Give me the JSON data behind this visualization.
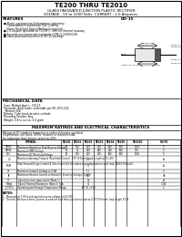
{
  "title": "TE200 THRU TE2010",
  "subtitle": "GLASS PASSIVATED JUNCTION PLASTIC RECTIFIER",
  "subtitle2": "VOLTAGE : 50 to 1000 Volts  CURRENT : 2.0 Amperes",
  "features_title": "FEATURES",
  "do15_label": "DO-15",
  "features": [
    "Plastic package has Underwriters Laboratory",
    "  Flammability Classification 94V-0 rating",
    "  Flame Retardant Epoxy Molding Compound",
    "2.0 ampere operation at TL=55°C  with no thermal runaway",
    "Exceeds environmental standards of MIL-S-19500/228",
    "Glass passivated junction in DO-15 package"
  ],
  "mech_title": "MECHANICAL DATA",
  "mech": [
    "Case: Molded plastic , DO-15",
    "Terminals: Axial leads, solderable per MIL-STD-202,",
    "  Method 208",
    "Polarity: Color band denotes cathode",
    "Mounting Position: Any",
    "Weight: 0.8 to ounce, 3.4 gram"
  ],
  "ratings_title": "MAXIMUM RATINGS AND ELECTRICAL CHARACTERISTICS",
  "ratings_note": "Ratings at 25° ambient temperature unless otherwise specified.",
  "ratings_note2": "Single phase, half wave, 60 Hz, resistive or inductive load.",
  "cap_note": "For capacitive load, derate current by 20%",
  "col_labels": [
    "",
    "TE200",
    "TE201",
    "TE202",
    "TE203",
    "TE204",
    "TE205",
    "TE2010",
    "UNITS"
  ],
  "sym_labels": [
    "VRRM",
    "VRMS",
    "VDC",
    "IO",
    "IFSM",
    "VF",
    "IR",
    "CT",
    "RthJA",
    "TJ,TSTG"
  ],
  "row_labels": [
    "Maximum Repetitive Peak Reverse Voltage",
    "Maximum RMS Voltage",
    "Maximum DC Blocking Voltage",
    "Maximum Average Forward (Rectified) Current .375\"(9.5mm) Lead Length at TL=55°",
    "Peak Forward Surge Current 8.3ms single half sine-wave superimposed on rated load (JEDEC Method)",
    "Maximum Forward Voltage at 2.0A",
    "Maximum Reverse Current at Rated DC Blocking Voltage, TJ=75°",
    "Typical junction capacitance (Note 1)",
    "Typical Thermal Resistance (Note 2) TJ-A",
    "Operating and Storage Temperature Range"
  ],
  "row_vals": [
    [
      "50",
      "100",
      "200",
      "400",
      "600",
      "800",
      "1000",
      "V"
    ],
    [
      "35",
      "70",
      "140",
      "280",
      "420",
      "560",
      "700",
      "V"
    ],
    [
      "50",
      "100",
      "200",
      "400",
      "600",
      "800",
      "1000",
      "V"
    ],
    [
      "",
      "",
      "2.0",
      "",
      "",
      "",
      "",
      "A"
    ],
    [
      "",
      "",
      "70",
      "",
      "",
      "",
      "",
      "A"
    ],
    [
      "",
      "",
      "1.1",
      "",
      "",
      "",
      "",
      "V"
    ],
    [
      "",
      "",
      "500",
      "",
      "",
      "",
      "",
      "nA"
    ],
    [
      "",
      "",
      "15",
      "",
      "",
      "",
      "",
      "pF"
    ],
    [
      "",
      "",
      "30",
      "",
      "",
      "",
      "",
      "°C/W"
    ],
    [
      "",
      "",
      "-65 TO +150",
      "",
      "",
      "",
      "",
      "°C"
    ]
  ],
  "notes": [
    "1.  Measured at 1 MHz and applied reverse voltage of 4.0 VDC.",
    "2.  Thermal Resistance from junction to ambient and from junction to lead at 0.375\"(9.5mm) lead length P.C.B."
  ],
  "bg_color": "#ffffff",
  "text_color": "#000000"
}
